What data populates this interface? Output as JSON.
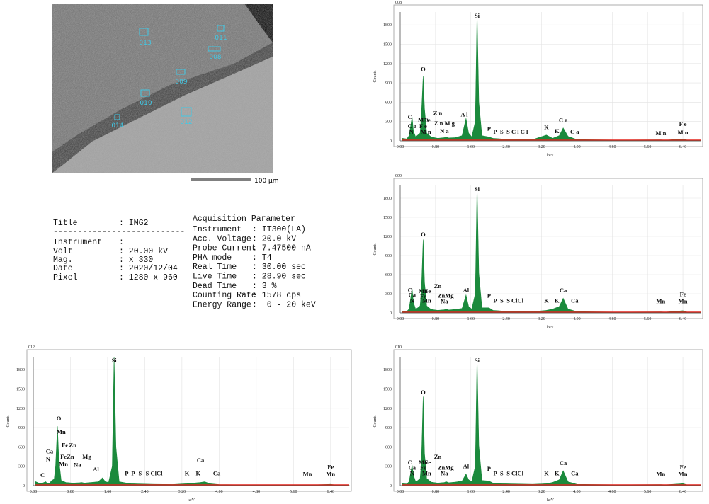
{
  "sem_image": {
    "regions": [
      {
        "label": "013"
      },
      {
        "label": "011"
      },
      {
        "label": "008"
      },
      {
        "label": "009"
      },
      {
        "label": "010"
      },
      {
        "label": "014"
      },
      {
        "label": "012"
      }
    ],
    "scale_label": "100 µm"
  },
  "parameters": {
    "left_rows": [
      [
        "Title",
        ": IMG2"
      ],
      [
        "Instrument",
        ":"
      ],
      [
        "Volt",
        ": 20.00 kV"
      ],
      [
        "Mag.",
        ": x 330"
      ],
      [
        "Date",
        ": 2020/12/04"
      ],
      [
        "Pixel",
        ": 1280 x 960"
      ]
    ],
    "separator": "---------------------------",
    "heading": "Acquisition Parameter",
    "right_rows": [
      [
        "Instrument",
        ": IT300(LA)"
      ],
      [
        "Acc. Voltage",
        ": 20.0 kV"
      ],
      [
        "Probe Current",
        ": 7.47500 nA"
      ],
      [
        "PHA mode",
        ": T4"
      ],
      [
        "Real Time",
        ": 30.00 sec"
      ],
      [
        "Live Time",
        ": 28.90 sec"
      ],
      [
        "Dead Time",
        ": 3 %"
      ],
      [
        "Counting Rate",
        ": 1578 cps"
      ],
      [
        "Energy Range",
        ":  0 - 20 keV"
      ]
    ]
  },
  "chart_data": [
    {
      "type": "line",
      "title": "008",
      "xlabel": "keV",
      "ylabel": "Counts",
      "color": "#1b8a3c",
      "baseline_color": "#e3241c",
      "xlim": [
        0,
        6.8
      ],
      "xticks": [
        {
          "value": 0,
          "label": "0.00"
        },
        {
          "value": 0.8,
          "label": "0.80"
        },
        {
          "value": 1.6,
          "label": "1.60"
        },
        {
          "value": 2.4,
          "label": "2.40"
        },
        {
          "value": 3.2,
          "label": "3.20"
        },
        {
          "value": 4,
          "label": "4.00"
        },
        {
          "value": 4.8,
          "label": "4.80"
        },
        {
          "value": 5.6,
          "label": "5.60"
        },
        {
          "value": 6.4,
          "label": "6.40"
        }
      ],
      "ylim": [
        0,
        2000
      ],
      "yticks": [
        0,
        300,
        600,
        900,
        1200,
        1500,
        1800
      ],
      "x": [
        0.05,
        0.15,
        0.2,
        0.27,
        0.3,
        0.35,
        0.4,
        0.45,
        0.48,
        0.52,
        0.55,
        0.6,
        0.7,
        0.85,
        1.0,
        1.04,
        1.1,
        1.25,
        1.4,
        1.49,
        1.55,
        1.62,
        1.7,
        1.74,
        1.78,
        1.85,
        2.01,
        2.1,
        2.3,
        2.6,
        3.0,
        3.31,
        3.45,
        3.6,
        3.69,
        3.8,
        4.0,
        4.5,
        5.0,
        5.9,
        6.0,
        6.4,
        6.5,
        6.8
      ],
      "values": [
        40,
        30,
        80,
        370,
        150,
        60,
        90,
        120,
        400,
        1000,
        500,
        120,
        60,
        40,
        50,
        60,
        45,
        50,
        80,
        350,
        120,
        60,
        300,
        2000,
        600,
        80,
        60,
        40,
        30,
        25,
        20,
        90,
        40,
        80,
        200,
        70,
        20,
        15,
        12,
        15,
        10,
        30,
        12,
        8
      ],
      "annotations": [
        {
          "text": "C",
          "x": 0.22,
          "y": 340
        },
        {
          "text": "C a",
          "x": 0.27,
          "y": 200
        },
        {
          "text": "N",
          "x": 0.25,
          "y": 110
        },
        {
          "text": "O",
          "x": 0.52,
          "y": 1080
        },
        {
          "text": "M n",
          "x": 0.52,
          "y": 300
        },
        {
          "text": "F e",
          "x": 0.6,
          "y": 290
        },
        {
          "text": "F e",
          "x": 0.52,
          "y": 200
        },
        {
          "text": "M n",
          "x": 0.58,
          "y": 110
        },
        {
          "text": "Z n",
          "x": 0.85,
          "y": 400
        },
        {
          "text": "Z n M g",
          "x": 1.0,
          "y": 240
        },
        {
          "text": "N a",
          "x": 1.0,
          "y": 120
        },
        {
          "text": "A l",
          "x": 1.45,
          "y": 380
        },
        {
          "text": "Si",
          "x": 1.74,
          "y": 1910
        },
        {
          "text": "P",
          "x": 2.01,
          "y": 160
        },
        {
          "text": "P",
          "x": 2.15,
          "y": 110
        },
        {
          "text": "S",
          "x": 2.3,
          "y": 110
        },
        {
          "text": "S C l C l",
          "x": 2.65,
          "y": 110
        },
        {
          "text": "K",
          "x": 3.31,
          "y": 180
        },
        {
          "text": "K",
          "x": 3.55,
          "y": 120
        },
        {
          "text": "C a",
          "x": 3.69,
          "y": 290
        },
        {
          "text": "C a",
          "x": 3.95,
          "y": 110
        },
        {
          "text": "M n",
          "x": 5.9,
          "y": 90
        },
        {
          "text": "F e",
          "x": 6.4,
          "y": 230
        },
        {
          "text": "M n",
          "x": 6.4,
          "y": 100
        }
      ]
    },
    {
      "type": "line",
      "title": "009",
      "xlabel": "keV",
      "ylabel": "Counts",
      "color": "#1b8a3c",
      "baseline_color": "#e3241c",
      "xlim": [
        0,
        6.8
      ],
      "xticks": [
        {
          "value": 0,
          "label": "0.00"
        },
        {
          "value": 0.8,
          "label": "0.80"
        },
        {
          "value": 1.6,
          "label": "1.60"
        },
        {
          "value": 2.4,
          "label": "2.40"
        },
        {
          "value": 3.2,
          "label": "3.20"
        },
        {
          "value": 4,
          "label": "4.00"
        },
        {
          "value": 4.8,
          "label": "4.80"
        },
        {
          "value": 5.6,
          "label": "5.60"
        },
        {
          "value": 6.4,
          "label": "6.40"
        }
      ],
      "ylim": [
        0,
        2000
      ],
      "yticks": [
        0,
        300,
        600,
        900,
        1200,
        1500,
        1800
      ],
      "x": [
        0.05,
        0.15,
        0.2,
        0.27,
        0.3,
        0.35,
        0.4,
        0.45,
        0.48,
        0.52,
        0.55,
        0.6,
        0.7,
        0.85,
        1.0,
        1.04,
        1.1,
        1.25,
        1.4,
        1.49,
        1.55,
        1.62,
        1.7,
        1.74,
        1.78,
        1.85,
        2.01,
        2.1,
        2.3,
        2.6,
        3.0,
        3.31,
        3.45,
        3.6,
        3.69,
        3.8,
        4.0,
        4.5,
        5.0,
        5.9,
        6.0,
        6.4,
        6.5,
        6.8
      ],
      "values": [
        30,
        25,
        60,
        380,
        160,
        60,
        80,
        110,
        350,
        1150,
        480,
        110,
        55,
        40,
        50,
        60,
        45,
        55,
        70,
        280,
        100,
        60,
        300,
        2000,
        620,
        80,
        80,
        40,
        30,
        25,
        20,
        40,
        60,
        100,
        230,
        60,
        20,
        15,
        12,
        15,
        12,
        35,
        12,
        8
      ],
      "annotations": [
        {
          "text": "C",
          "x": 0.22,
          "y": 330
        },
        {
          "text": "Ca",
          "x": 0.27,
          "y": 250
        },
        {
          "text": "N",
          "x": 0.27,
          "y": 160
        },
        {
          "text": "O",
          "x": 0.52,
          "y": 1200
        },
        {
          "text": "Mn",
          "x": 0.52,
          "y": 310
        },
        {
          "text": "Fe",
          "x": 0.62,
          "y": 310
        },
        {
          "text": "Fe",
          "x": 0.52,
          "y": 230
        },
        {
          "text": "Mn",
          "x": 0.6,
          "y": 160
        },
        {
          "text": "Zn",
          "x": 0.85,
          "y": 390
        },
        {
          "text": "ZnMg",
          "x": 1.03,
          "y": 240
        },
        {
          "text": "Na",
          "x": 1.0,
          "y": 150
        },
        {
          "text": "Al",
          "x": 1.49,
          "y": 320
        },
        {
          "text": "Si",
          "x": 1.74,
          "y": 1910
        },
        {
          "text": "P",
          "x": 2.01,
          "y": 240
        },
        {
          "text": "P",
          "x": 2.15,
          "y": 160
        },
        {
          "text": "S",
          "x": 2.3,
          "y": 160
        },
        {
          "text": "S ClCl",
          "x": 2.6,
          "y": 160
        },
        {
          "text": "K",
          "x": 3.31,
          "y": 160
        },
        {
          "text": "K",
          "x": 3.55,
          "y": 160
        },
        {
          "text": "Ca",
          "x": 3.69,
          "y": 320
        },
        {
          "text": "Ca",
          "x": 3.95,
          "y": 160
        },
        {
          "text": "Mn",
          "x": 5.9,
          "y": 150
        },
        {
          "text": "Fe",
          "x": 6.4,
          "y": 260
        },
        {
          "text": "Mn",
          "x": 6.4,
          "y": 150
        }
      ]
    },
    {
      "type": "line",
      "title": "012",
      "xlabel": "keV",
      "ylabel": "Counts",
      "color": "#1b8a3c",
      "baseline_color": "#e3241c",
      "xlim": [
        0,
        6.8
      ],
      "xticks": [
        {
          "value": 0,
          "label": "0.00"
        },
        {
          "value": 0.8,
          "label": "0.80"
        },
        {
          "value": 1.6,
          "label": "1.60"
        },
        {
          "value": 2.4,
          "label": "2.40"
        },
        {
          "value": 3.2,
          "label": "3.20"
        },
        {
          "value": 4,
          "label": "4.00"
        },
        {
          "value": 4.8,
          "label": "4.80"
        },
        {
          "value": 5.6,
          "label": "5.60"
        },
        {
          "value": 6.4,
          "label": "6.40"
        }
      ],
      "ylim": [
        0,
        2000
      ],
      "yticks": [
        0,
        300,
        600,
        900,
        1200,
        1500,
        1800
      ],
      "x": [
        0.05,
        0.15,
        0.2,
        0.27,
        0.3,
        0.35,
        0.4,
        0.45,
        0.48,
        0.52,
        0.55,
        0.6,
        0.7,
        0.85,
        1.0,
        1.04,
        1.1,
        1.25,
        1.4,
        1.49,
        1.55,
        1.62,
        1.7,
        1.74,
        1.78,
        1.85,
        2.01,
        2.1,
        2.3,
        2.6,
        3.0,
        3.31,
        3.45,
        3.6,
        3.69,
        3.8,
        4.0,
        4.5,
        5.0,
        5.9,
        6.0,
        6.4,
        6.5,
        6.8
      ],
      "values": [
        60,
        30,
        40,
        60,
        30,
        40,
        80,
        100,
        300,
        920,
        400,
        80,
        50,
        40,
        45,
        50,
        40,
        50,
        60,
        120,
        60,
        50,
        300,
        2000,
        600,
        60,
        40,
        30,
        25,
        20,
        18,
        30,
        40,
        50,
        60,
        30,
        15,
        12,
        10,
        12,
        10,
        20,
        10,
        6
      ],
      "annotations": [
        {
          "text": "C",
          "x": 0.2,
          "y": 130
        },
        {
          "text": "Ca",
          "x": 0.35,
          "y": 500
        },
        {
          "text": "N",
          "x": 0.32,
          "y": 380
        },
        {
          "text": "O",
          "x": 0.55,
          "y": 1010
        },
        {
          "text": "Mn",
          "x": 0.6,
          "y": 800
        },
        {
          "text": "Fe",
          "x": 0.68,
          "y": 600
        },
        {
          "text": "Fe",
          "x": 0.65,
          "y": 420
        },
        {
          "text": "Mn",
          "x": 0.65,
          "y": 300
        },
        {
          "text": "Zn",
          "x": 0.85,
          "y": 600
        },
        {
          "text": "Zn",
          "x": 0.8,
          "y": 420
        },
        {
          "text": "Mg",
          "x": 1.15,
          "y": 420
        },
        {
          "text": "Na",
          "x": 0.95,
          "y": 290
        },
        {
          "text": "Al",
          "x": 1.35,
          "y": 220
        },
        {
          "text": "Si",
          "x": 1.74,
          "y": 1910
        },
        {
          "text": "P",
          "x": 2.01,
          "y": 160
        },
        {
          "text": "P",
          "x": 2.15,
          "y": 160
        },
        {
          "text": "S",
          "x": 2.3,
          "y": 160
        },
        {
          "text": "S ClCl",
          "x": 2.6,
          "y": 160
        },
        {
          "text": "K",
          "x": 3.31,
          "y": 160
        },
        {
          "text": "K",
          "x": 3.55,
          "y": 160
        },
        {
          "text": "Ca",
          "x": 3.6,
          "y": 360
        },
        {
          "text": "Ca",
          "x": 3.95,
          "y": 160
        },
        {
          "text": "Mn",
          "x": 5.9,
          "y": 150
        },
        {
          "text": "Fe",
          "x": 6.4,
          "y": 260
        },
        {
          "text": "Mn",
          "x": 6.4,
          "y": 150
        }
      ]
    },
    {
      "type": "line",
      "title": "010",
      "xlabel": "keV",
      "ylabel": "Counts",
      "color": "#1b8a3c",
      "baseline_color": "#e3241c",
      "xlim": [
        0,
        6.8
      ],
      "xticks": [
        {
          "value": 0,
          "label": "0.00"
        },
        {
          "value": 0.8,
          "label": "0.80"
        },
        {
          "value": 1.6,
          "label": "1.60"
        },
        {
          "value": 2.4,
          "label": "2.40"
        },
        {
          "value": 3.2,
          "label": "3.20"
        },
        {
          "value": 4,
          "label": "4.00"
        },
        {
          "value": 4.8,
          "label": "4.80"
        },
        {
          "value": 5.6,
          "label": "5.60"
        },
        {
          "value": 6.4,
          "label": "6.40"
        }
      ],
      "ylim": [
        0,
        2000
      ],
      "yticks": [
        0,
        300,
        600,
        900,
        1200,
        1500,
        1800
      ],
      "x": [
        0.05,
        0.15,
        0.2,
        0.27,
        0.3,
        0.35,
        0.4,
        0.45,
        0.48,
        0.52,
        0.55,
        0.6,
        0.7,
        0.85,
        1.0,
        1.04,
        1.1,
        1.25,
        1.4,
        1.49,
        1.55,
        1.62,
        1.7,
        1.74,
        1.78,
        1.85,
        2.01,
        2.1,
        2.3,
        2.6,
        3.0,
        3.31,
        3.45,
        3.6,
        3.69,
        3.8,
        4.0,
        4.5,
        5.0,
        5.9,
        6.0,
        6.4,
        6.5,
        6.8
      ],
      "values": [
        30,
        25,
        60,
        320,
        160,
        60,
        80,
        110,
        350,
        1380,
        500,
        110,
        55,
        40,
        50,
        60,
        45,
        55,
        70,
        180,
        90,
        60,
        300,
        2000,
        620,
        80,
        70,
        40,
        30,
        25,
        20,
        30,
        50,
        90,
        230,
        60,
        20,
        15,
        12,
        15,
        12,
        30,
        12,
        8
      ],
      "annotations": [
        {
          "text": "C",
          "x": 0.22,
          "y": 330
        },
        {
          "text": "Ca",
          "x": 0.27,
          "y": 250
        },
        {
          "text": "N",
          "x": 0.27,
          "y": 160
        },
        {
          "text": "O",
          "x": 0.52,
          "y": 1420
        },
        {
          "text": "Mn",
          "x": 0.52,
          "y": 330
        },
        {
          "text": "Fe",
          "x": 0.62,
          "y": 330
        },
        {
          "text": "Fe",
          "x": 0.52,
          "y": 250
        },
        {
          "text": "Mn",
          "x": 0.6,
          "y": 160
        },
        {
          "text": "Zn",
          "x": 0.85,
          "y": 420
        },
        {
          "text": "ZnMg",
          "x": 1.03,
          "y": 250
        },
        {
          "text": "Na",
          "x": 1.0,
          "y": 160
        },
        {
          "text": "Al",
          "x": 1.49,
          "y": 270
        },
        {
          "text": "Si",
          "x": 1.74,
          "y": 1910
        },
        {
          "text": "P",
          "x": 2.01,
          "y": 230
        },
        {
          "text": "P",
          "x": 2.15,
          "y": 160
        },
        {
          "text": "S",
          "x": 2.3,
          "y": 160
        },
        {
          "text": "S ClCl",
          "x": 2.6,
          "y": 160
        },
        {
          "text": "K",
          "x": 3.31,
          "y": 160
        },
        {
          "text": "K",
          "x": 3.55,
          "y": 160
        },
        {
          "text": "Ca",
          "x": 3.69,
          "y": 320
        },
        {
          "text": "Ca",
          "x": 3.95,
          "y": 160
        },
        {
          "text": "Mn",
          "x": 5.9,
          "y": 150
        },
        {
          "text": "Fe",
          "x": 6.4,
          "y": 260
        },
        {
          "text": "Mn",
          "x": 6.4,
          "y": 150
        }
      ]
    }
  ]
}
